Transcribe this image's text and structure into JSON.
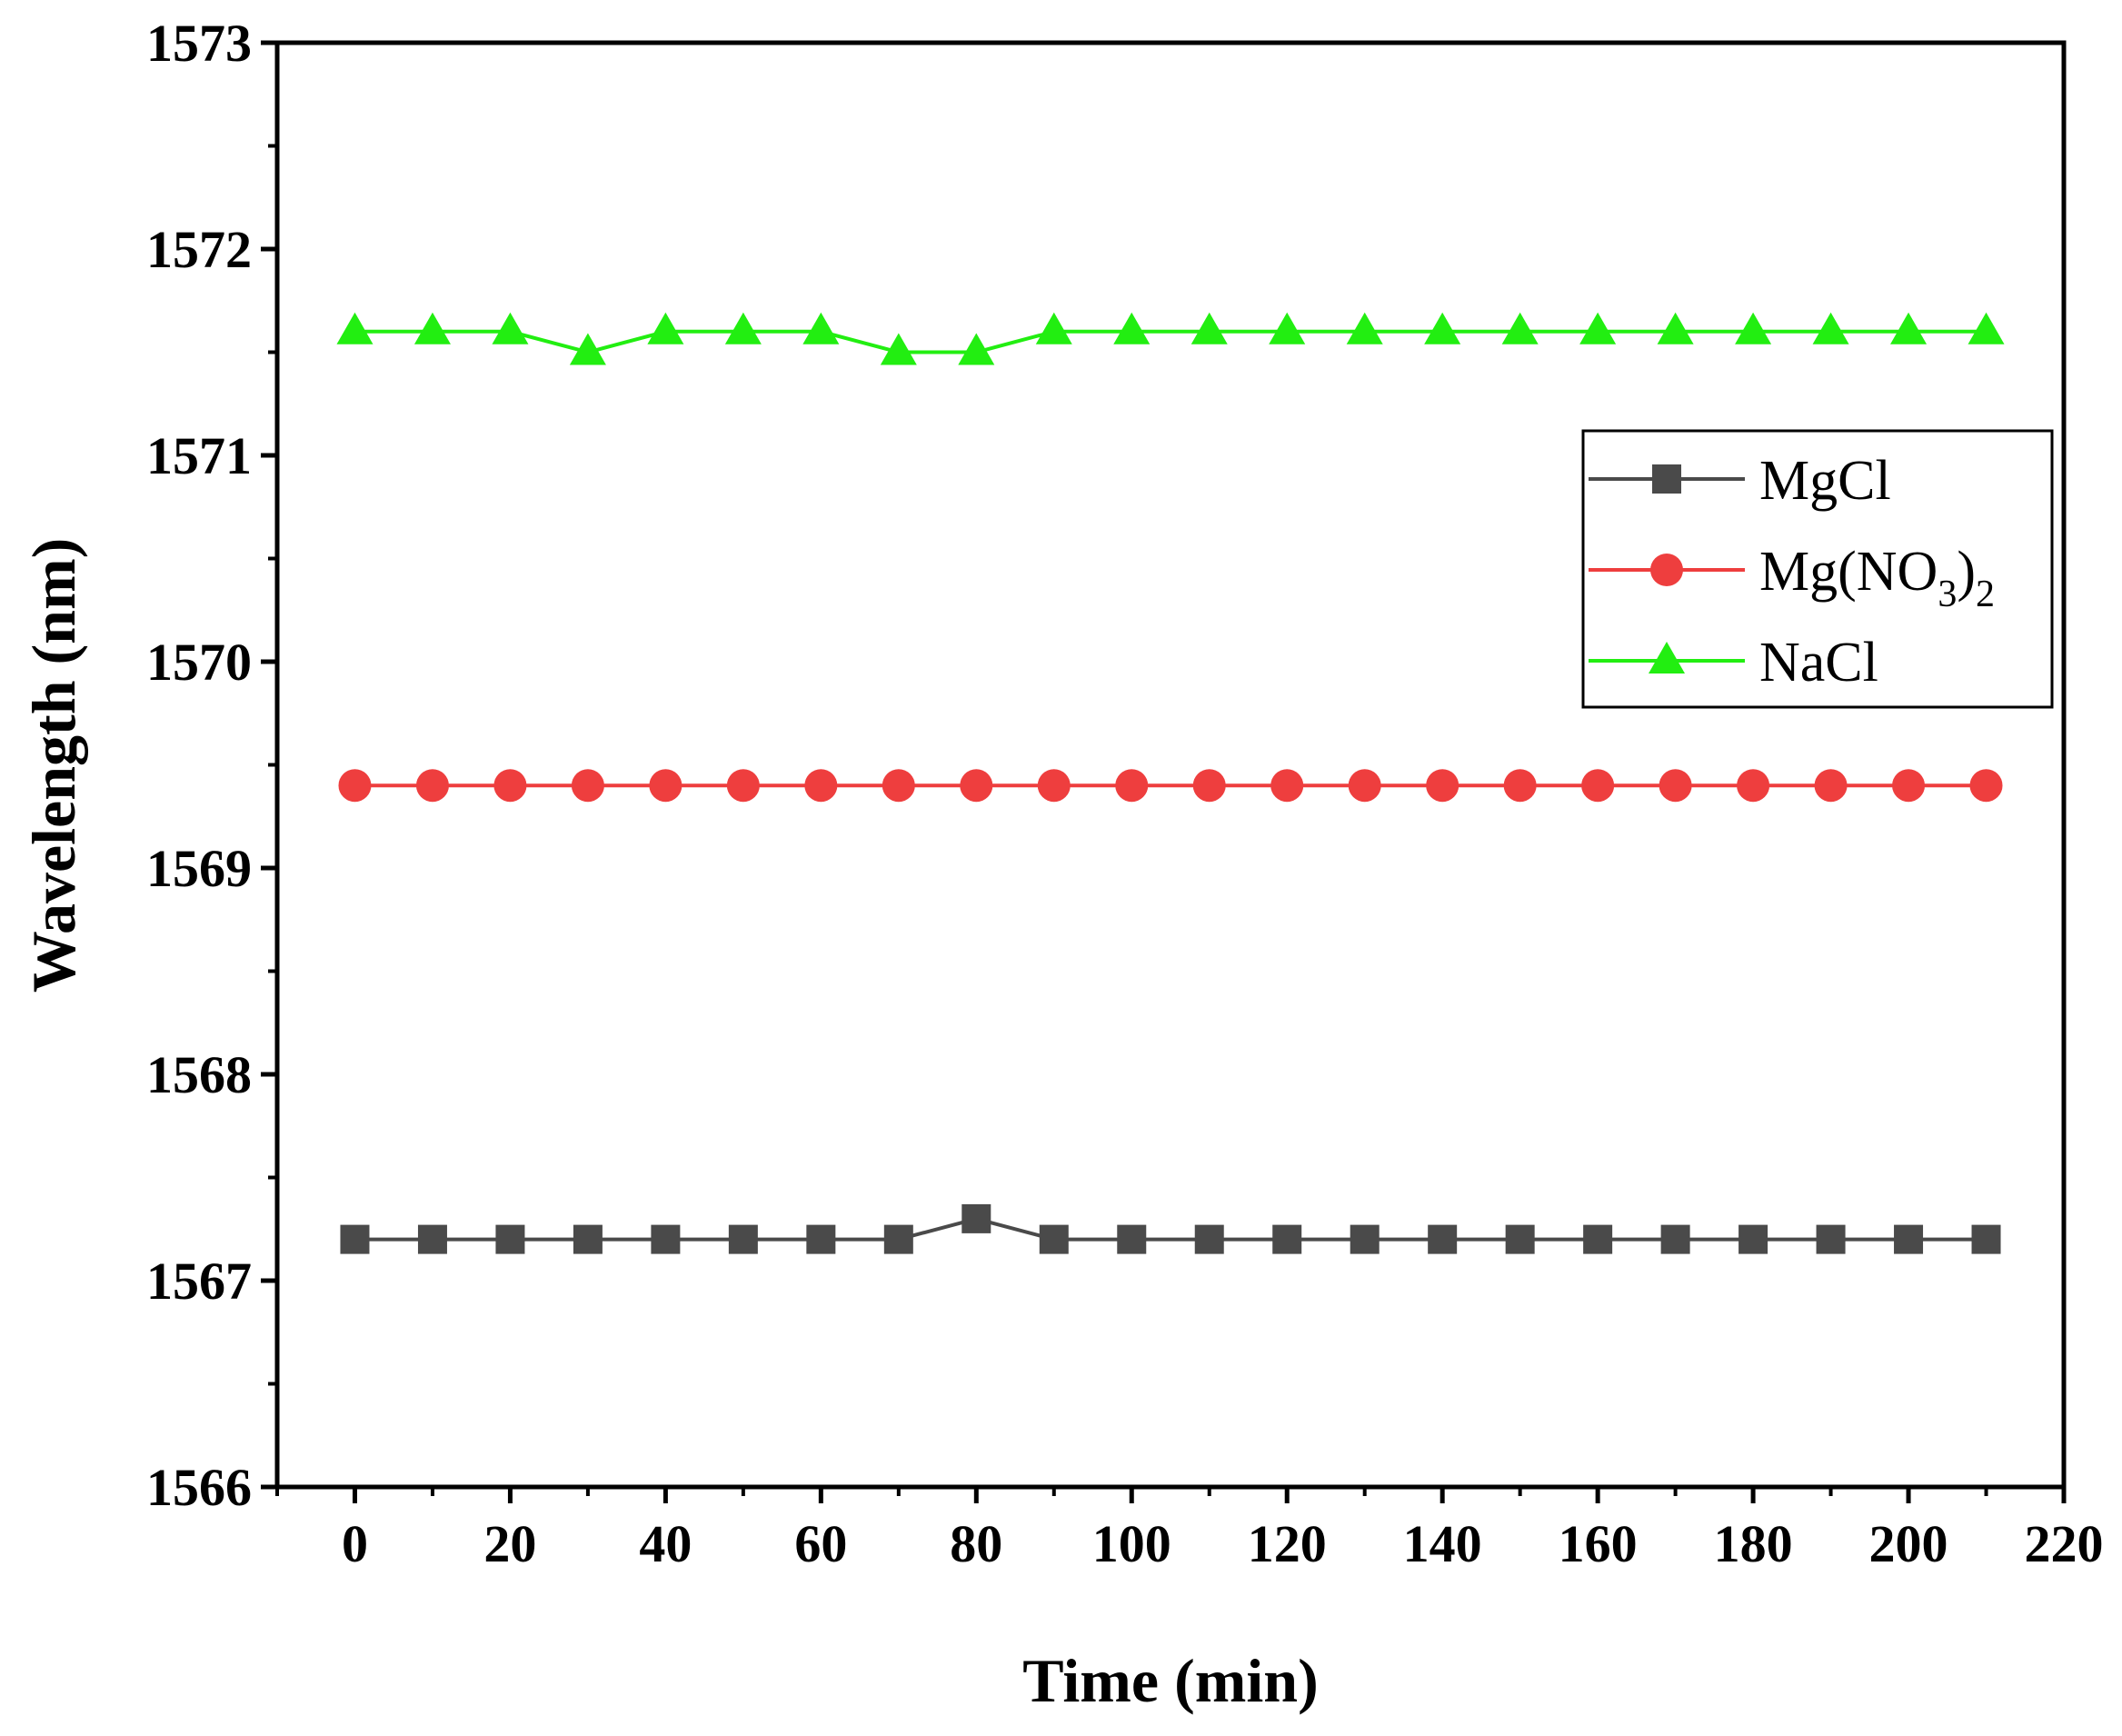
{
  "chart_data": {
    "type": "line",
    "title": "",
    "xlabel": "Time (min)",
    "ylabel": "Wavelength (nm)",
    "xlim": [
      -10,
      220
    ],
    "ylim": [
      1566,
      1573
    ],
    "xticks": [
      "0",
      "20",
      "40",
      "60",
      "80",
      "100",
      "120",
      "140",
      "160",
      "180",
      "200",
      "220"
    ],
    "yticks": [
      "1566",
      "1567",
      "1568",
      "1569",
      "1570",
      "1571",
      "1572",
      "1573"
    ],
    "grid": false,
    "legend_position": "upper-right",
    "x": [
      0,
      10,
      20,
      30,
      40,
      50,
      60,
      70,
      80,
      90,
      100,
      110,
      120,
      130,
      140,
      150,
      160,
      170,
      180,
      190,
      200,
      210
    ],
    "series": [
      {
        "name": "MgCl",
        "legend_parts": [
          {
            "text": "MgCl",
            "sub": ""
          }
        ],
        "color": "#4a4a4a",
        "marker": "square",
        "values": [
          1567.2,
          1567.2,
          1567.2,
          1567.2,
          1567.2,
          1567.2,
          1567.2,
          1567.2,
          1567.3,
          1567.2,
          1567.2,
          1567.2,
          1567.2,
          1567.2,
          1567.2,
          1567.2,
          1567.2,
          1567.2,
          1567.2,
          1567.2,
          1567.2,
          1567.2
        ]
      },
      {
        "name": "Mg(NO3)2",
        "legend_parts": [
          {
            "text": "Mg(NO",
            "sub": ""
          },
          {
            "text": "",
            "sub": "3"
          },
          {
            "text": ")",
            "sub": ""
          },
          {
            "text": "",
            "sub": "2"
          }
        ],
        "color": "#ee3e3e",
        "marker": "circle",
        "values": [
          1569.4,
          1569.4,
          1569.4,
          1569.4,
          1569.4,
          1569.4,
          1569.4,
          1569.4,
          1569.4,
          1569.4,
          1569.4,
          1569.4,
          1569.4,
          1569.4,
          1569.4,
          1569.4,
          1569.4,
          1569.4,
          1569.4,
          1569.4,
          1569.4,
          1569.4
        ]
      },
      {
        "name": "NaCl",
        "legend_parts": [
          {
            "text": "NaCl",
            "sub": ""
          }
        ],
        "color": "#22ee11",
        "marker": "triangle",
        "values": [
          1571.6,
          1571.6,
          1571.6,
          1571.5,
          1571.6,
          1571.6,
          1571.6,
          1571.5,
          1571.5,
          1571.6,
          1571.6,
          1571.6,
          1571.6,
          1571.6,
          1571.6,
          1571.6,
          1571.6,
          1571.6,
          1571.6,
          1571.6,
          1571.6,
          1571.6
        ]
      }
    ]
  }
}
